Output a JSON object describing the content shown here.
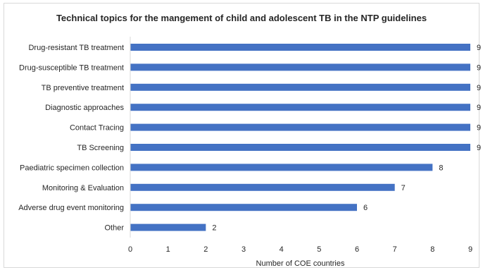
{
  "chart_data": {
    "type": "bar",
    "orientation": "horizontal",
    "title": "Technical topics for the mangement of child and adolescent TB in the NTP guidelines",
    "xlabel": "Number of COE countries",
    "ylabel": "",
    "categories": [
      "Drug-resistant TB treatment",
      "Drug-susceptible TB treatment",
      "TB preventive treatment",
      "Diagnostic approaches",
      "Contact Tracing",
      "TB Screening",
      "Paediatric specimen collection",
      "Monitoring & Evaluation",
      "Adverse drug event monitoring",
      "Other"
    ],
    "values": [
      9,
      9,
      9,
      9,
      9,
      9,
      8,
      7,
      6,
      2
    ],
    "xlim": [
      0,
      9
    ],
    "xticks": [
      "0",
      "1",
      "2",
      "3",
      "4",
      "5",
      "6",
      "7",
      "8",
      "9"
    ],
    "grid": false,
    "legend": "none",
    "bar_color": "#4472c4"
  }
}
